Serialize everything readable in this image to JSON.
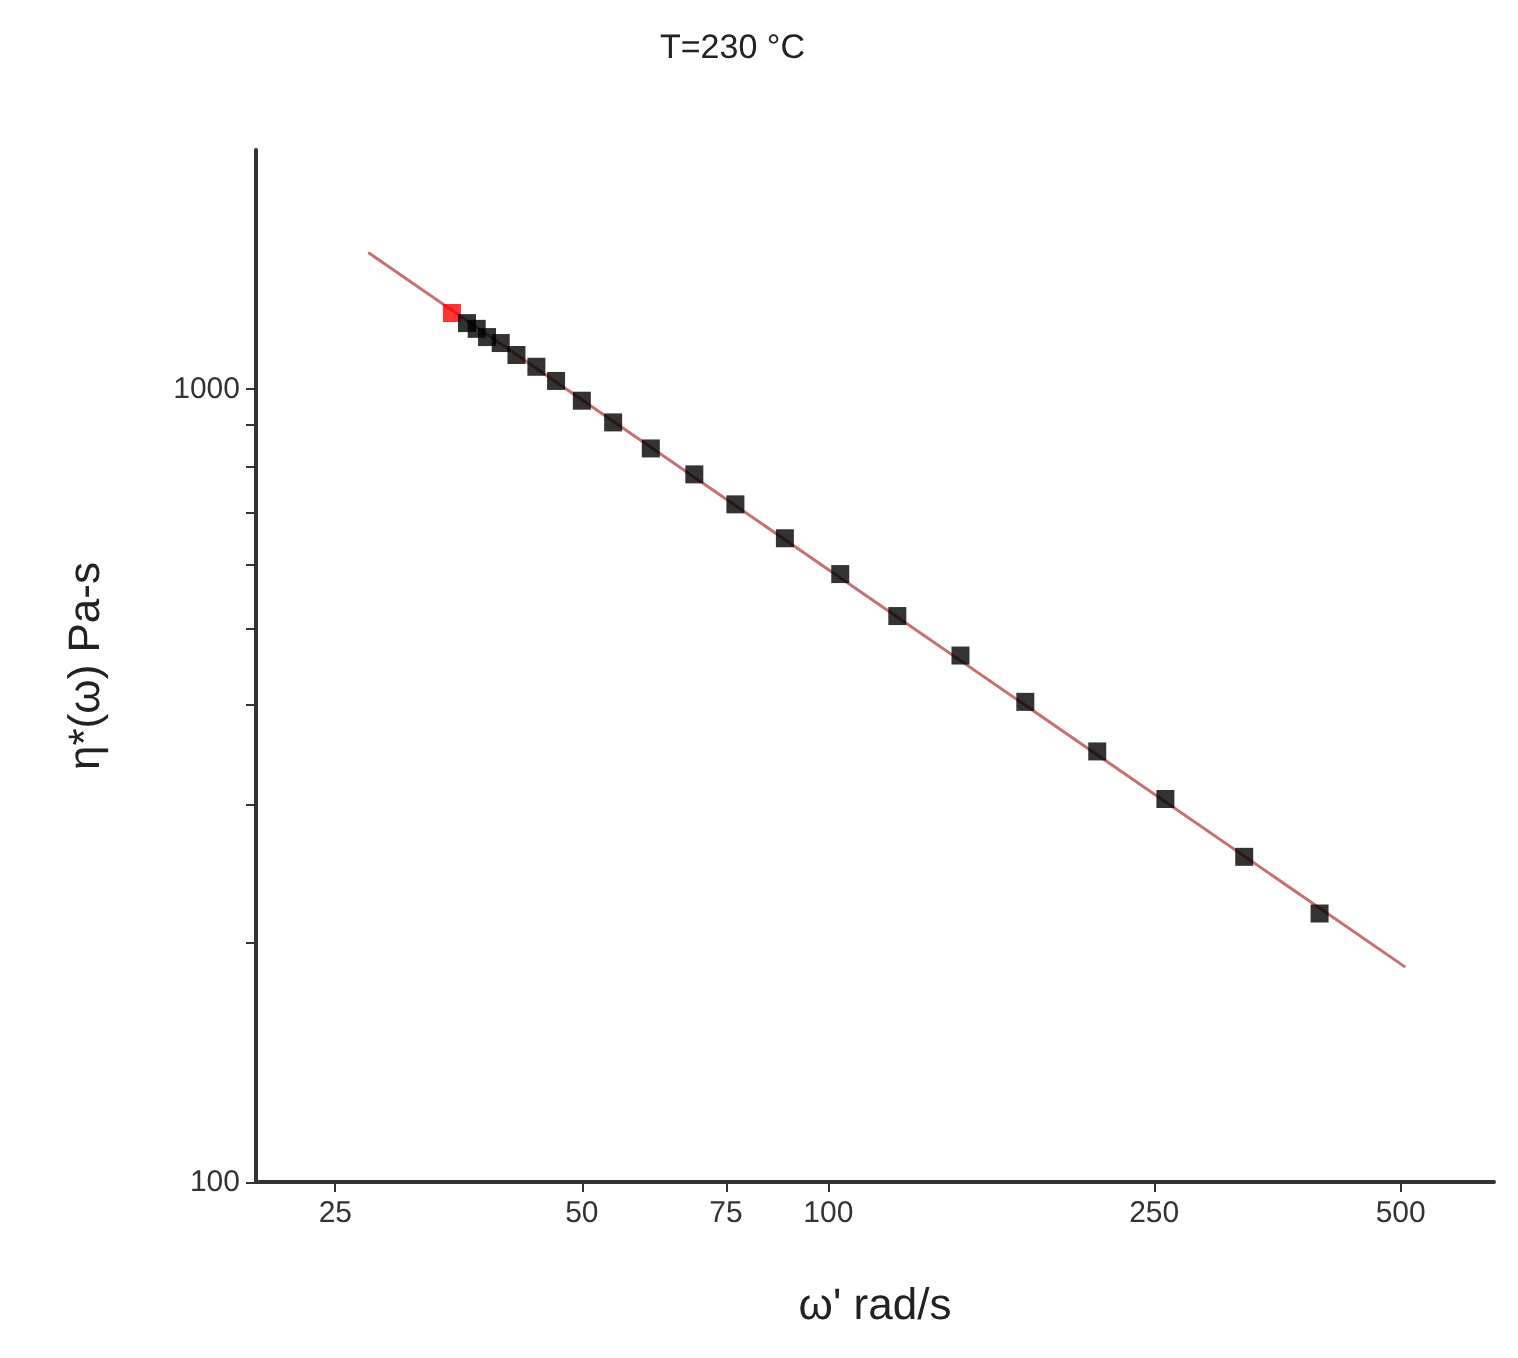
{
  "chart_data": {
    "type": "scatter",
    "title": "T=230 °C",
    "xlabel": "ω' rad/s",
    "ylabel": "η*(ω) Pa-s",
    "log": "xy",
    "grid": false,
    "marker": "square",
    "xlim": [
      20,
      650
    ],
    "xticks": [
      25,
      50,
      75,
      100,
      250,
      500
    ],
    "ylim": [
      100,
      2000
    ],
    "yticks": [
      100,
      {
        "value": 200,
        "label": null
      },
      {
        "value": 300,
        "label": null
      },
      {
        "value": 400,
        "label": null
      },
      {
        "value": 500,
        "label": null
      },
      {
        "value": 600,
        "label": null
      },
      {
        "value": 700,
        "label": null
      },
      {
        "value": 800,
        "label": null
      },
      {
        "value": 900,
        "label": null
      },
      1000
    ],
    "series": [
      {
        "type": "line",
        "color": "#c87070",
        "marker": "none",
        "x": [
          27.5,
          505
        ],
        "values": [
          1482,
          187
        ]
      },
      {
        "color": "#000000",
        "x": [
          34.7,
          36.2,
          37.2,
          38.3,
          39.8,
          41.6,
          44.0,
          46.5,
          50.0,
          54.6,
          60.7,
          68.6,
          77.0,
          88.5,
          103.4,
          121.4,
          145,
          174,
          213,
          258,
          322,
          398
        ],
        "values": [
          1246,
          1210,
          1190,
          1162,
          1142,
          1103,
          1066,
          1023,
          966,
          907,
          841,
          780,
          715,
          648,
          584,
          517,
          461,
          403,
          349,
          304,
          257,
          218
        ],
        "colors": [
          "#ff0000",
          "#000000",
          "#000000",
          "#000000",
          "#000000",
          "#000000",
          "#000000",
          "#000000",
          "#000000",
          "#000000",
          "#000000",
          "#000000",
          "#000000",
          "#000000",
          "#000000",
          "#000000",
          "#000000",
          "#000000",
          "#000000",
          "#000000",
          "#000000",
          "#000000"
        ]
      }
    ]
  }
}
